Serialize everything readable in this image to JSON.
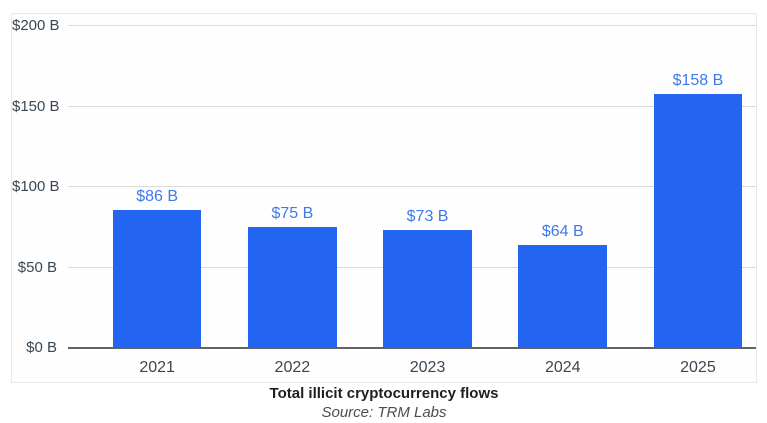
{
  "chart_data": {
    "type": "bar",
    "title": "Total illicit cryptocurrency flows",
    "source_note": "Source: TRM Labs",
    "categories": [
      "2021",
      "2022",
      "2023",
      "2024",
      "2025"
    ],
    "values": [
      86,
      75,
      73,
      64,
      158
    ],
    "bar_labels": [
      "$86 B",
      "$75 B",
      "$73 B",
      "$64 B",
      "$158 B"
    ],
    "xlabel": "",
    "ylabel": "",
    "ylim": [
      0,
      200
    ],
    "y_ticks": [
      0,
      50,
      100,
      150,
      200
    ],
    "y_tick_labels": [
      "$0 B",
      "$50 B",
      "$100 B",
      "$150 B",
      "$200 B"
    ],
    "grid": true,
    "legend_position": "none",
    "colors": {
      "bar": "#2364f1",
      "value_label": "#3f79e9",
      "axis_text": "#3a4752",
      "gridline": "#dadada",
      "axis_line": "#5f6368",
      "title_text": "#1f1f1f",
      "source_text": "#4e4e4e",
      "card_border": "#e8e8e8",
      "card_background": "#fefefe"
    }
  }
}
